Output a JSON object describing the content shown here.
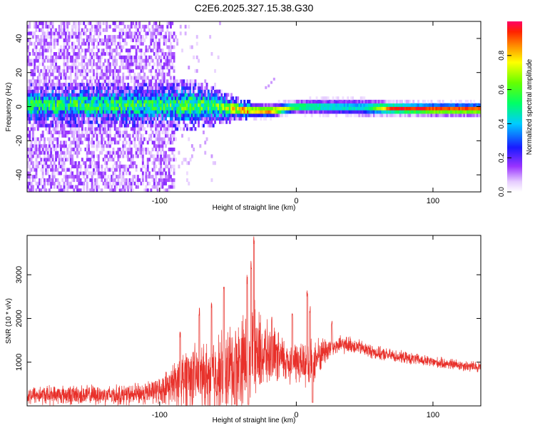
{
  "title": "C2E6.2025.327.15.38.G30",
  "chart_data": [
    {
      "type": "heatmap",
      "xlabel": "Height of straight line (km)",
      "ylabel": "Frequency (Hz)",
      "xlim": [
        -197,
        135
      ],
      "ylim": [
        -50,
        50
      ],
      "xticks": [
        -100,
        0,
        100
      ],
      "yticks": [
        -40,
        -20,
        0,
        20,
        40
      ],
      "colorbar": {
        "label": "Normalized spectral amplitude",
        "range": [
          0,
          1
        ],
        "ticks": [
          0.0,
          0.2,
          0.4,
          0.6,
          0.8
        ]
      },
      "noise_region_x": [
        -197,
        -90
      ],
      "signal_band": [
        {
          "x": -95,
          "freq": 1.0,
          "halfwidth": 7,
          "amp": 0.45
        },
        {
          "x": -80,
          "freq": 1.0,
          "halfwidth": 8,
          "amp": 0.5
        },
        {
          "x": -60,
          "freq": 0.5,
          "halfwidth": 6,
          "amp": 0.5
        },
        {
          "x": -40,
          "freq": -2.0,
          "halfwidth": 3,
          "amp": 0.75
        },
        {
          "x": -20,
          "freq": -2.5,
          "halfwidth": 2.5,
          "amp": 0.9
        },
        {
          "x": 0,
          "freq": 0.0,
          "halfwidth": 2.5,
          "amp": 0.6
        },
        {
          "x": 20,
          "freq": 0.0,
          "halfwidth": 3,
          "amp": 0.5
        },
        {
          "x": 50,
          "freq": -0.5,
          "halfwidth": 3.5,
          "amp": 0.45
        },
        {
          "x": 70,
          "freq": -1.0,
          "halfwidth": 2.5,
          "amp": 0.95
        },
        {
          "x": 100,
          "freq": -1.5,
          "halfwidth": 2.5,
          "amp": 0.95
        },
        {
          "x": 135,
          "freq": -1.5,
          "halfwidth": 2.5,
          "amp": 0.95
        }
      ]
    },
    {
      "type": "line",
      "xlabel": "Height of straight line (km)",
      "ylabel": "SNR (10 * v/v)",
      "xlim": [
        -197,
        135
      ],
      "ylim": [
        0,
        3900
      ],
      "xticks": [
        -100,
        0,
        100
      ],
      "yticks": [
        1000,
        2000,
        3000
      ],
      "series_color": "#e8302a",
      "envelope": [
        {
          "x": -197,
          "base": 250,
          "spread": 250
        },
        {
          "x": -120,
          "base": 250,
          "spread": 280
        },
        {
          "x": -100,
          "base": 350,
          "spread": 350
        },
        {
          "x": -90,
          "base": 500,
          "spread": 550
        },
        {
          "x": -80,
          "base": 700,
          "spread": 900
        },
        {
          "x": -70,
          "base": 650,
          "spread": 800
        },
        {
          "x": -60,
          "base": 700,
          "spread": 1100
        },
        {
          "x": -45,
          "base": 900,
          "spread": 1200
        },
        {
          "x": -33,
          "base": 1200,
          "spread": 1400
        },
        {
          "x": -20,
          "base": 1150,
          "spread": 800
        },
        {
          "x": -10,
          "base": 1050,
          "spread": 650
        },
        {
          "x": 0,
          "base": 1000,
          "spread": 600
        },
        {
          "x": 10,
          "base": 950,
          "spread": 700
        },
        {
          "x": 20,
          "base": 1250,
          "spread": 400
        },
        {
          "x": 30,
          "base": 1380,
          "spread": 250
        },
        {
          "x": 40,
          "base": 1400,
          "spread": 220
        },
        {
          "x": 60,
          "base": 1200,
          "spread": 180
        },
        {
          "x": 80,
          "base": 1100,
          "spread": 160
        },
        {
          "x": 100,
          "base": 1000,
          "spread": 150
        },
        {
          "x": 135,
          "base": 880,
          "spread": 150
        }
      ],
      "peaks": [
        {
          "x": -31,
          "y": 3880
        },
        {
          "x": -33,
          "y": 3400
        },
        {
          "x": -36,
          "y": 3000
        },
        {
          "x": -53,
          "y": 2780
        },
        {
          "x": -62,
          "y": 2380
        },
        {
          "x": -71,
          "y": 2250
        },
        {
          "x": -85,
          "y": 1700
        },
        {
          "x": 8,
          "y": 2640
        },
        {
          "x": 10,
          "y": 2300
        },
        {
          "x": -3,
          "y": 2120
        },
        {
          "x": 26,
          "y": 1960
        },
        {
          "x": -18,
          "y": 2050
        }
      ],
      "dips": [
        {
          "x": 12,
          "y": 80
        },
        {
          "x": -35,
          "y": 30
        },
        {
          "x": -45,
          "y": 40
        }
      ]
    }
  ]
}
